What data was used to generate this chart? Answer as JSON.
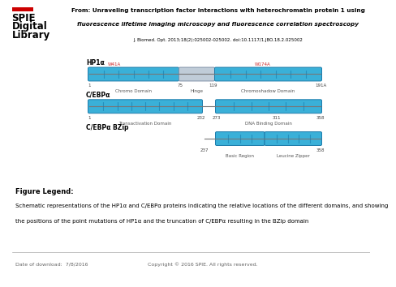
{
  "title_line1": "From: Unraveling transcription factor interactions with heterochromatin protein 1 using",
  "title_line2": "fluorescence lifetime imaging microscopy and fluorescence correlation spectroscopy",
  "title_ref": "J. Biomed. Opt. 2013;18(2):025002-025002. doi:10.1117/1.JBO.18.2.025002",
  "fig_legend_title": "Figure Legend:",
  "fig_legend_line1": "Schematic representations of the HP1α and C/EBPα proteins indicating the relative locations of the different domains, and showing",
  "fig_legend_line2": "the positions of the point mutations of HP1α and the truncation of C/EBPα resulting in the BZip domain",
  "footer_left": "Date of download:  7/8/2016",
  "footer_right": "Copyright © 2016 SPIE. All rights reserved.",
  "bg_color": "#ffffff",
  "blue_fill": "#3ab0d8",
  "blue_edge": "#1a7aaa",
  "blue_stripe": "#1a6fa0",
  "gray_fill": "#c0ccd8",
  "gray_edge": "#8090a8",
  "line_col": "#777777",
  "mut_col": "#cc2222",
  "tick_col": "#444444",
  "dom_label_col": "#555555",
  "hp1a_label": "HP1α",
  "cebpa_label": "C/EBPα",
  "bzip_label": "C/EBPα BZip"
}
